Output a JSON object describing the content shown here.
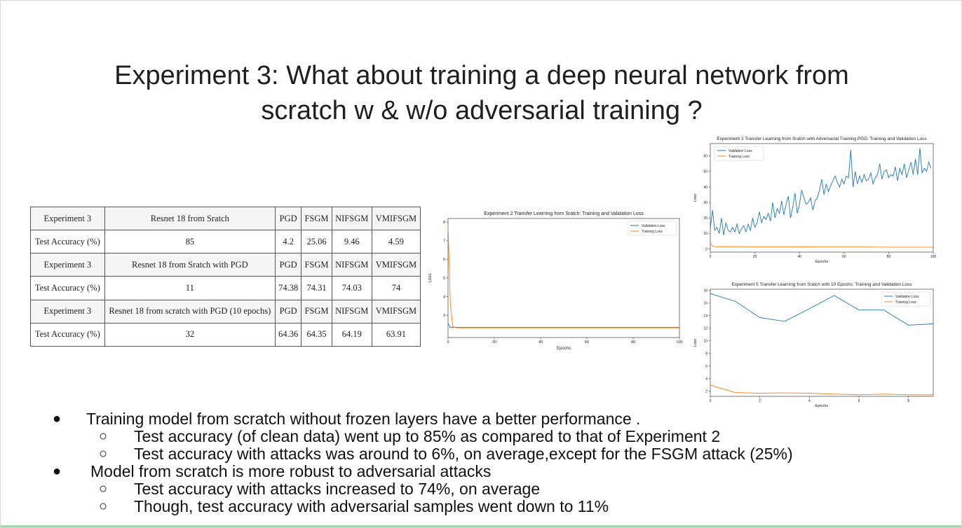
{
  "slide": {
    "title_line1": "Experiment 3: What about training a deep neural network from",
    "title_line2": "scratch w & w/o adversarial training ?"
  },
  "table": {
    "rows": [
      {
        "kind": "header",
        "cells": [
          "Experiment   3",
          "Resnet 18  from Sratch",
          "PGD",
          "FSGM",
          "NIFSGM",
          "VMIFSGM"
        ]
      },
      {
        "kind": "acc",
        "cells": [
          "Test  Accuracy (%)",
          "85",
          "4.2",
          "25.06",
          "9.46",
          "4.59"
        ]
      },
      {
        "kind": "header",
        "cells": [
          "Experiment   3",
          "Resnet 18  from Sratch with PGD",
          "PGD",
          "FSGM",
          "NIFSGM",
          "VMIFSGM"
        ]
      },
      {
        "kind": "acc",
        "cells": [
          "Test  Accuracy (%)",
          "11",
          "74.38",
          "74.31",
          "74.03",
          "74"
        ]
      },
      {
        "kind": "header",
        "cells": [
          "Experiment   3",
          "Resnet 18 from scratch with PGD (10 epochs)",
          "PGD",
          "FSGM",
          "NIFSGM",
          "VMIFSGM"
        ]
      },
      {
        "kind": "acc",
        "cells": [
          "Test  Accuracy (%)",
          "32",
          "64.36",
          "64.35",
          "64.19",
          "63.91"
        ]
      }
    ]
  },
  "chart_data": [
    {
      "type": "line",
      "title": "Experiment 2 Transfer Learning from Sratch: Training and Validation Loss",
      "xlabel": "Epochs",
      "ylabel": "Loss",
      "xlim": [
        0,
        100
      ],
      "ylim": [
        1.8,
        8.2
      ],
      "xticks": [
        0,
        20,
        40,
        60,
        80,
        100
      ],
      "yticks": [
        3,
        4,
        5,
        6,
        7,
        8
      ],
      "legend": "top-right",
      "series": [
        {
          "name": "Validation Loss",
          "color": "#1f77b4",
          "x": [
            0,
            1,
            2,
            3,
            5,
            10,
            20,
            30,
            40,
            50,
            60,
            70,
            80,
            90,
            100
          ],
          "y": [
            2.55,
            2.35,
            2.35,
            2.35,
            2.35,
            2.35,
            2.35,
            2.35,
            2.35,
            2.35,
            2.35,
            2.35,
            2.35,
            2.35,
            2.35
          ]
        },
        {
          "name": "Training Loss",
          "color": "#ff7f0e",
          "x": [
            0,
            1,
            2,
            3,
            5,
            10,
            20,
            30,
            40,
            50,
            60,
            70,
            80,
            90,
            100
          ],
          "y": [
            7.85,
            3.6,
            2.4,
            2.33,
            2.32,
            2.32,
            2.32,
            2.32,
            2.32,
            2.32,
            2.32,
            2.32,
            2.32,
            2.32,
            2.32
          ]
        }
      ]
    },
    {
      "type": "line",
      "title": "Experiment 2 Transfer Learning from Sratch with Adversarial Training PGD: Training and Validation Loss",
      "xlabel": "Epochs",
      "ylabel": "Loss",
      "xlim": [
        0,
        100
      ],
      "ylim": [
        -2,
        68
      ],
      "xticks": [
        0,
        20,
        40,
        60,
        80,
        100
      ],
      "yticks": [
        0,
        10,
        20,
        30,
        40,
        50,
        60
      ],
      "legend": "top-left",
      "series": [
        {
          "name": "Validation Loss",
          "color": "#1f77b4",
          "x": [
            0,
            1,
            2,
            3,
            4,
            5,
            6,
            7,
            8,
            9,
            10,
            11,
            12,
            13,
            14,
            15,
            16,
            17,
            18,
            19,
            20,
            21,
            22,
            23,
            24,
            25,
            26,
            27,
            28,
            29,
            30,
            31,
            32,
            33,
            34,
            35,
            36,
            37,
            38,
            39,
            40,
            41,
            42,
            43,
            44,
            45,
            46,
            47,
            48,
            49,
            50,
            51,
            52,
            53,
            54,
            55,
            56,
            57,
            58,
            59,
            60,
            61,
            62,
            63,
            64,
            65,
            66,
            67,
            68,
            69,
            70,
            71,
            72,
            73,
            74,
            75,
            76,
            77,
            78,
            79,
            80,
            81,
            82,
            83,
            84,
            85,
            86,
            87,
            88,
            89,
            90,
            91,
            92,
            93,
            94,
            95,
            96,
            97,
            98,
            99
          ],
          "y": [
            13,
            25,
            12,
            14,
            10,
            20,
            9,
            17,
            12,
            11,
            14,
            11,
            16,
            10,
            13,
            15,
            11,
            16,
            12,
            20,
            14,
            17,
            24,
            17,
            21,
            19,
            23,
            18,
            30,
            20,
            26,
            23,
            31,
            22,
            29,
            34,
            20,
            27,
            36,
            23,
            29,
            38,
            33,
            29,
            30,
            33,
            25,
            31,
            33,
            38,
            45,
            35,
            42,
            37,
            41,
            44,
            47,
            43,
            40,
            45,
            42,
            47,
            46,
            64,
            40,
            50,
            42,
            47,
            43,
            48,
            44,
            45,
            49,
            42,
            46,
            48,
            55,
            45,
            50,
            51,
            46,
            48,
            47,
            53,
            44,
            52,
            48,
            55,
            46,
            51,
            56,
            48,
            58,
            48,
            65,
            49,
            52,
            50,
            56,
            52
          ]
        },
        {
          "name": "Training Loss",
          "color": "#ff7f0e",
          "x": [
            0,
            1,
            2,
            3,
            5,
            10,
            20,
            30,
            40,
            50,
            60,
            70,
            80,
            90,
            100
          ],
          "y": [
            4.2,
            1.8,
            1.6,
            1.5,
            1.5,
            1.5,
            1.4,
            1.4,
            1.4,
            1.3,
            1.3,
            1.3,
            1.2,
            1.2,
            1.2
          ]
        }
      ]
    },
    {
      "type": "line",
      "title": "Experiment 5 Transfer Learning from Sratch with 10 Epochs: Training and Validation Loss",
      "xlabel": "Epochs",
      "ylabel": "Loss",
      "xlim": [
        0,
        9
      ],
      "ylim": [
        1.2,
        18.2
      ],
      "xticks": [
        0,
        2,
        4,
        6,
        8
      ],
      "yticks": [
        2,
        4,
        6,
        8,
        10,
        12,
        14,
        16,
        18
      ],
      "legend": "top-right",
      "series": [
        {
          "name": "Validation Loss",
          "color": "#1f77b4",
          "x": [
            0,
            1,
            2,
            3,
            4,
            5,
            6,
            7,
            8,
            9
          ],
          "y": [
            17.5,
            16.3,
            13.7,
            13.1,
            15.1,
            17.2,
            14.9,
            14.9,
            12.5,
            12.7
          ]
        },
        {
          "name": "Training Loss",
          "color": "#ff7f0e",
          "x": [
            0,
            1,
            2,
            3,
            4,
            5,
            6,
            7,
            8,
            9
          ],
          "y": [
            3.0,
            1.8,
            1.7,
            1.75,
            1.7,
            1.55,
            1.45,
            1.55,
            1.45,
            1.45
          ]
        }
      ]
    }
  ],
  "bullets": [
    {
      "level": 1,
      "marker": "●",
      "text": "Training model from scratch without frozen layers have a better performance ."
    },
    {
      "level": 2,
      "marker": "○",
      "text": "Test accuracy (of clean data) went up to 85% as compared to that of Experiment 2"
    },
    {
      "level": 2,
      "marker": "○",
      "text": "Test accuracy with attacks was around to 6%, on average,except for the FSGM attack (25%)"
    },
    {
      "level": 1,
      "marker": "●",
      "text": "Model from scratch is more robust to adversarial attacks"
    },
    {
      "level": 2,
      "marker": "○",
      "text": "Test accuracy with attacks increased to 74%, on average"
    },
    {
      "level": 2,
      "marker": "○",
      "text": "Though, test accuracy with adversarial samples went down to 11%"
    }
  ]
}
